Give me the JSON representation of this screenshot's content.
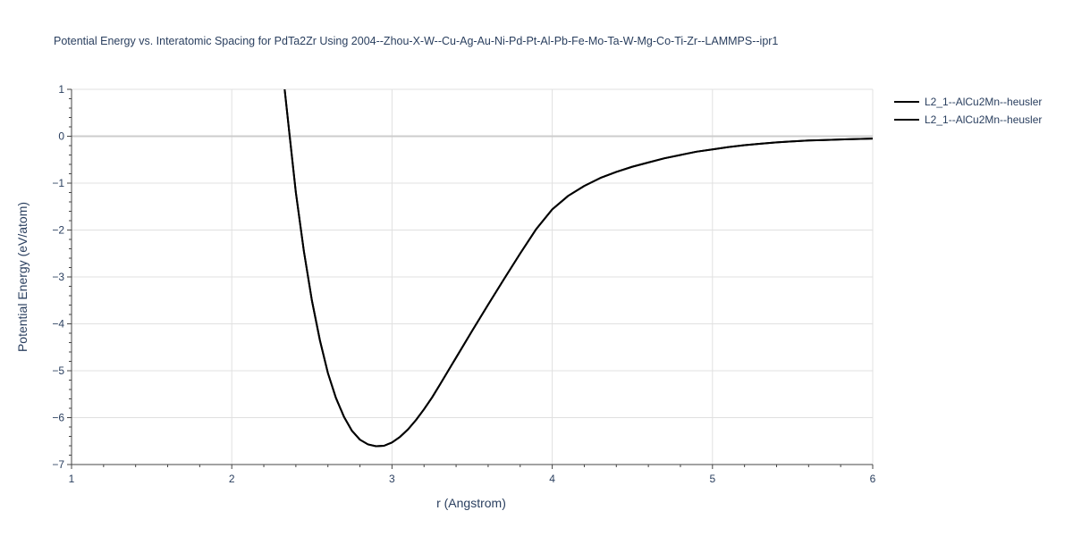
{
  "chart_data": {
    "type": "line",
    "title": "Potential Energy vs. Interatomic Spacing for PdTa2Zr Using 2004--Zhou-X-W--Cu-Ag-Au-Ni-Pd-Pt-Al-Pb-Fe-Mo-Ta-W-Mg-Co-Ti-Zr--LAMMPS--ipr1",
    "xlabel": "r (Angstrom)",
    "ylabel": "Potential Energy (eV/atom)",
    "xlim": [
      1,
      6
    ],
    "ylim": [
      -7,
      1
    ],
    "x_ticks": [
      1,
      2,
      3,
      4,
      5,
      6
    ],
    "y_ticks": [
      1,
      0,
      -1,
      -2,
      -3,
      -4,
      -5,
      -6,
      -7
    ],
    "x_tick_labels": [
      "1",
      "2",
      "3",
      "4",
      "5",
      "6"
    ],
    "y_tick_labels": [
      "1",
      "0",
      "−1",
      "−2",
      "−3",
      "−4",
      "−5",
      "−6",
      "−7"
    ],
    "grid": true,
    "legend_position": "top-right outside",
    "series": [
      {
        "name": "L2_1--AlCu2Mn--heusler",
        "color": "#000000",
        "x": [
          2.33,
          2.36,
          2.4,
          2.45,
          2.5,
          2.55,
          2.6,
          2.65,
          2.7,
          2.75,
          2.8,
          2.85,
          2.9,
          2.95,
          3.0,
          3.05,
          3.1,
          3.15,
          3.2,
          3.25,
          3.3,
          3.4,
          3.5,
          3.6,
          3.7,
          3.8,
          3.9,
          4.0,
          4.1,
          4.2,
          4.3,
          4.4,
          4.5,
          4.6,
          4.7,
          4.8,
          4.9,
          5.0,
          5.1,
          5.2,
          5.3,
          5.4,
          5.5,
          5.6,
          5.7,
          5.8,
          5.9,
          6.0
        ],
        "y": [
          1.0,
          0.05,
          -1.2,
          -2.45,
          -3.5,
          -4.35,
          -5.05,
          -5.58,
          -5.98,
          -6.28,
          -6.47,
          -6.57,
          -6.61,
          -6.6,
          -6.53,
          -6.41,
          -6.25,
          -6.05,
          -5.82,
          -5.57,
          -5.29,
          -4.72,
          -4.15,
          -3.59,
          -3.04,
          -2.5,
          -1.98,
          -1.56,
          -1.27,
          -1.06,
          -0.89,
          -0.76,
          -0.65,
          -0.56,
          -0.47,
          -0.4,
          -0.33,
          -0.28,
          -0.23,
          -0.19,
          -0.16,
          -0.13,
          -0.11,
          -0.09,
          -0.08,
          -0.07,
          -0.06,
          -0.05
        ]
      },
      {
        "name": "L2_1--AlCu2Mn--heusler",
        "color": "#000000",
        "x": [
          2.33,
          2.36,
          2.4,
          2.45,
          2.5,
          2.55,
          2.6,
          2.65,
          2.7,
          2.75,
          2.8,
          2.85,
          2.9,
          2.95,
          3.0,
          3.05,
          3.1,
          3.15,
          3.2,
          3.25,
          3.3,
          3.4,
          3.5,
          3.6,
          3.7,
          3.8,
          3.9,
          4.0,
          4.1,
          4.2,
          4.3,
          4.4,
          4.5,
          4.6,
          4.7,
          4.8,
          4.9,
          5.0,
          5.1,
          5.2,
          5.3,
          5.4,
          5.5,
          5.6,
          5.7,
          5.8,
          5.9,
          6.0
        ],
        "y": [
          1.0,
          0.05,
          -1.2,
          -2.45,
          -3.5,
          -4.35,
          -5.05,
          -5.58,
          -5.98,
          -6.28,
          -6.47,
          -6.57,
          -6.61,
          -6.6,
          -6.53,
          -6.41,
          -6.25,
          -6.05,
          -5.82,
          -5.57,
          -5.29,
          -4.72,
          -4.15,
          -3.59,
          -3.04,
          -2.5,
          -1.98,
          -1.56,
          -1.27,
          -1.06,
          -0.89,
          -0.76,
          -0.65,
          -0.56,
          -0.47,
          -0.4,
          -0.33,
          -0.28,
          -0.23,
          -0.19,
          -0.16,
          -0.13,
          -0.11,
          -0.09,
          -0.08,
          -0.07,
          -0.06,
          -0.05
        ]
      }
    ]
  }
}
